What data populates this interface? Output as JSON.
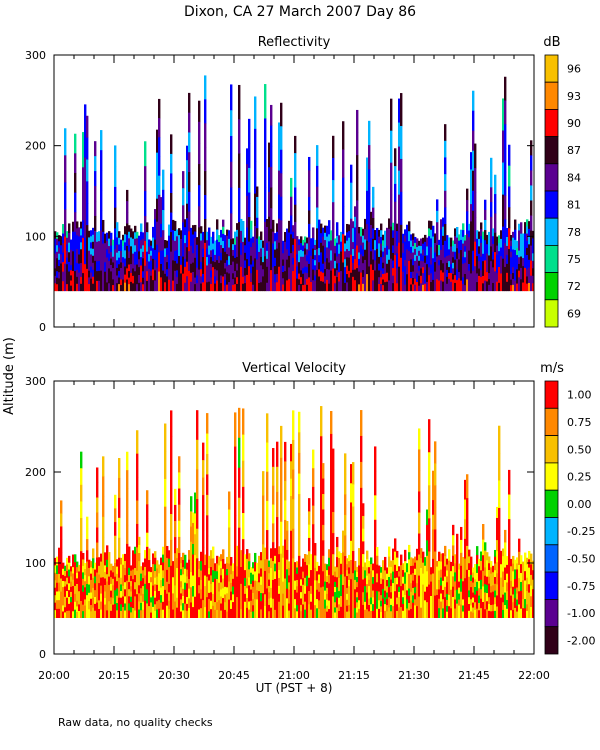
{
  "title": "Dixon, CA 27 March 2007  Day  86",
  "ylabel": "Altitude (m)",
  "xlabel": "UT  (PST + 8)",
  "footnote": "Raw data, no quality checks",
  "chart_data": [
    {
      "type": "heatmap",
      "title": "Reflectivity",
      "units": "dB",
      "x_range": [
        "20:00",
        "22:00"
      ],
      "x_ticks": [
        "20:00",
        "20:15",
        "20:30",
        "20:45",
        "21:00",
        "21:15",
        "21:30",
        "21:45",
        "22:00"
      ],
      "ylim": [
        0,
        300
      ],
      "y_ticks": [
        "0",
        "100",
        "200",
        "300"
      ],
      "colorbar_ticks": [
        "96",
        "93",
        "90",
        "87",
        "84",
        "81",
        "78",
        "75",
        "72",
        "69"
      ],
      "colorbar_colors": [
        "#f8c000",
        "#ff8800",
        "#ff0000",
        "#300018",
        "#5a0090",
        "#0000ff",
        "#00b4ff",
        "#00e08c",
        "#00d200",
        "#c8ff00"
      ],
      "data_floor_m": 40,
      "dense_layer_top_m": 120,
      "max_echo_m": 280
    },
    {
      "type": "heatmap",
      "title": "Vertical Velocity",
      "units": "m/s",
      "x_range": [
        "20:00",
        "22:00"
      ],
      "x_ticks": [
        "20:00",
        "20:15",
        "20:30",
        "20:45",
        "21:00",
        "21:15",
        "21:30",
        "21:45",
        "22:00"
      ],
      "ylim": [
        0,
        300
      ],
      "y_ticks": [
        "0",
        "100",
        "200",
        "300"
      ],
      "colorbar_ticks": [
        "1.00",
        "0.75",
        "0.50",
        "0.25",
        "0.00",
        "-0.25",
        "-0.50",
        "-0.75",
        "-1.00",
        "-2.00"
      ],
      "colorbar_colors": [
        "#ff0000",
        "#ff8800",
        "#f8c000",
        "#ffff00",
        "#00d200",
        "#00b4ff",
        "#0064ff",
        "#0000ff",
        "#5a0090",
        "#300018"
      ],
      "data_floor_m": 40,
      "dense_layer_top_m": 120,
      "max_echo_m": 280
    }
  ]
}
